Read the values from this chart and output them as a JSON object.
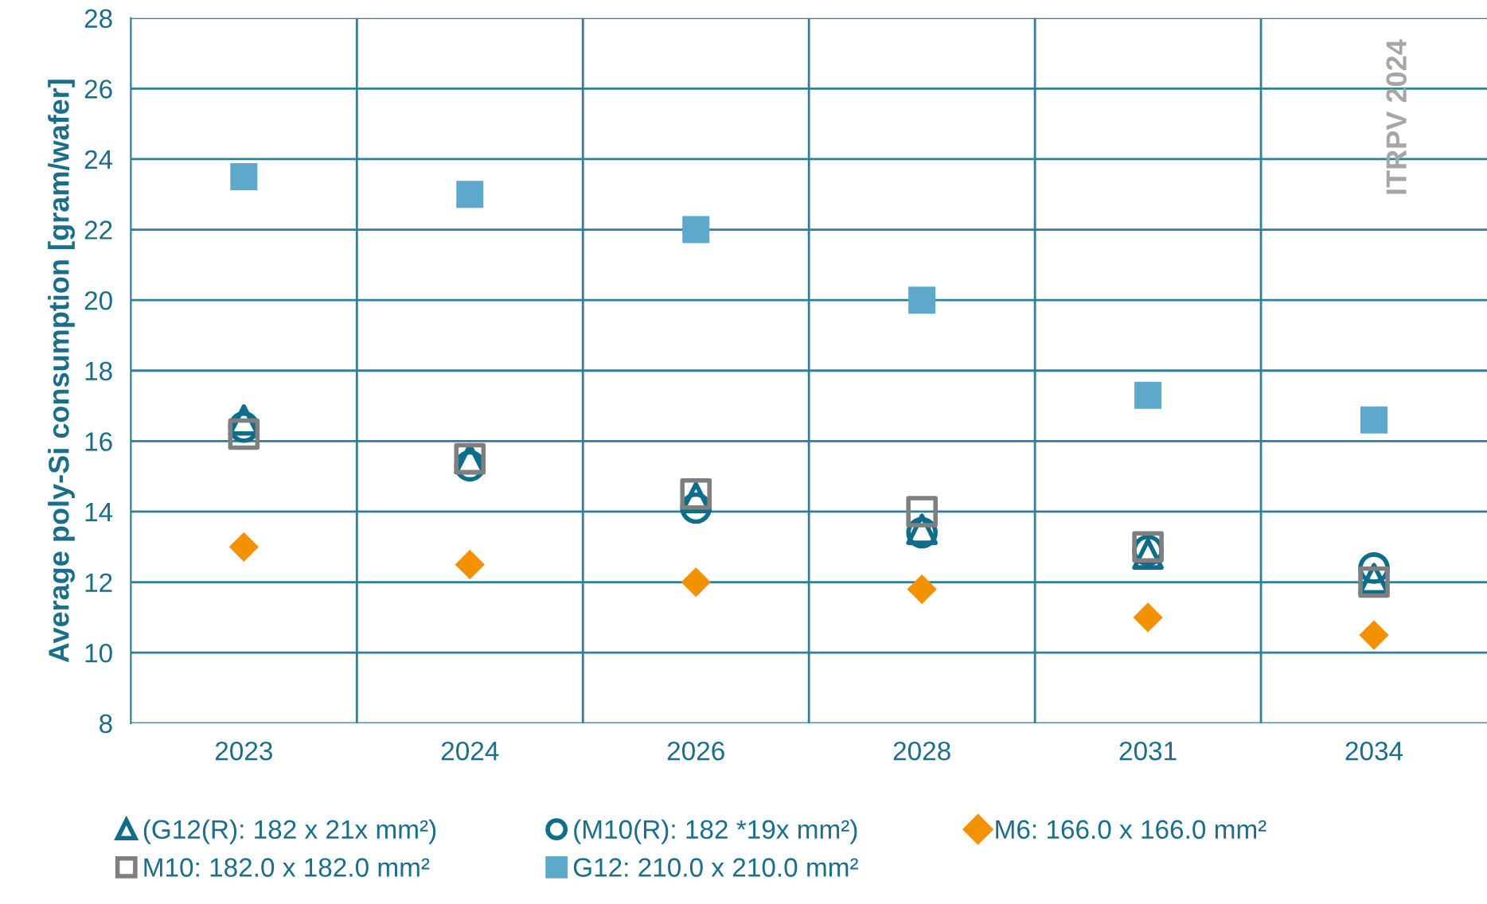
{
  "chart_data": {
    "type": "scatter",
    "ylabel": "Average poly-Si consumption [gram/wafer]",
    "categories": [
      "2023",
      "2024",
      "2026",
      "2028",
      "2031",
      "2034"
    ],
    "series": [
      {
        "name": "(G12(R): 182 x 21x mm²)",
        "color": "#0f6d8a",
        "marker": "triangle",
        "values": [
          16.6,
          15.5,
          14.4,
          13.5,
          12.8,
          12.1
        ]
      },
      {
        "name": "(M10(R): 182 *19x mm²)",
        "color": "#0f6d8a",
        "marker": "circle",
        "values": [
          16.4,
          15.3,
          14.1,
          13.4,
          12.9,
          12.4
        ]
      },
      {
        "name": "M6: 166.0 x 166.0 mm²",
        "color": "#f39200",
        "marker": "diamond",
        "values": [
          13.0,
          12.5,
          12.0,
          11.8,
          11.0,
          10.5
        ]
      },
      {
        "name": "M10: 182.0 x 182.0 mm²",
        "color": "#7f7f7f",
        "marker": "square",
        "values": [
          16.2,
          15.5,
          14.5,
          14.0,
          13.0,
          12.0
        ]
      },
      {
        "name": "G12: 210.0 x 210.0 mm²",
        "color": "#5ea8cb",
        "marker": "square",
        "values": [
          23.5,
          23.0,
          22.0,
          20.0,
          17.3,
          16.6
        ]
      }
    ],
    "ylim": [
      8,
      28
    ],
    "yticks": [
      8,
      10,
      12,
      14,
      16,
      18,
      20,
      22,
      24,
      26,
      28
    ],
    "grid": true,
    "legend": "bottom",
    "annotations": [
      "ITRPV 2024"
    ]
  }
}
